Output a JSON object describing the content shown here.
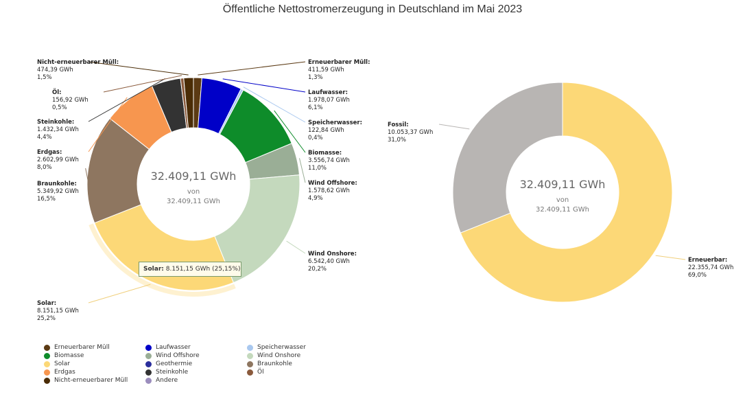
{
  "title": "Öffentliche Nettostromerzeugung in Deutschland im Mai 2023",
  "tooltip": {
    "name": "Solar:",
    "value": "8.151,15 GWh (25,15%)"
  },
  "legend": [
    {
      "label": "Erneuerbarer Müll",
      "color": "#5b3a14"
    },
    {
      "label": "Laufwasser",
      "color": "#0000c8"
    },
    {
      "label": "Speicherwasser",
      "color": "#a9c8ef"
    },
    {
      "label": "Biomasse",
      "color": "#0e8c2a"
    },
    {
      "label": "Wind Offshore",
      "color": "#9aae96"
    },
    {
      "label": "Wind Onshore",
      "color": "#c4d9bd"
    },
    {
      "label": "Solar",
      "color": "#fcd877"
    },
    {
      "label": "Geothermie",
      "color": "#2a2e9c"
    },
    {
      "label": "Braunkohle",
      "color": "#8e7660"
    },
    {
      "label": "Erdgas",
      "color": "#f7964f"
    },
    {
      "label": "Steinkohle",
      "color": "#333333"
    },
    {
      "label": "Öl",
      "color": "#8a5a3c"
    },
    {
      "label": "Nicht-erneuerbarer Müll",
      "color": "#4a2c06"
    },
    {
      "label": "Andere",
      "color": "#9b8dbd"
    }
  ],
  "chart_data": [
    {
      "type": "pie",
      "donut": true,
      "unit": "GWh",
      "center_total": "32.409,11 GWh",
      "center_of": "von",
      "center_sub": "32.409,11 GWh",
      "slices": [
        {
          "name": "Erneuerbarer Müll",
          "value": 411.59,
          "value_text": "411,59 GWh",
          "percent_text": "1,3%",
          "color": "#5b3a14"
        },
        {
          "name": "Laufwasser",
          "value": 1978.07,
          "value_text": "1.978,07 GWh",
          "percent_text": "6,1%",
          "color": "#0000c8"
        },
        {
          "name": "Speicherwasser",
          "value": 122.84,
          "value_text": "122,84 GWh",
          "percent_text": "0,4%",
          "color": "#a9c8ef"
        },
        {
          "name": "Biomasse",
          "value": 3556.74,
          "value_text": "3.556,74 GWh",
          "percent_text": "11,0%",
          "color": "#0e8c2a"
        },
        {
          "name": "Wind Offshore",
          "value": 1578.62,
          "value_text": "1.578,62 GWh",
          "percent_text": "4,9%",
          "color": "#9aae96"
        },
        {
          "name": "Wind Onshore",
          "value": 6542.4,
          "value_text": "6.542,40 GWh",
          "percent_text": "20,2%",
          "color": "#c4d9bd"
        },
        {
          "name": "Solar",
          "value": 8151.15,
          "value_text": "8.151,15 GWh",
          "percent_text": "25,2%",
          "color": "#fcd877",
          "highlighted": true
        },
        {
          "name": "Braunkohle",
          "value": 5349.92,
          "value_text": "5.349,92 GWh",
          "percent_text": "16,5%",
          "color": "#8e7660"
        },
        {
          "name": "Erdgas",
          "value": 2602.99,
          "value_text": "2.602,99 GWh",
          "percent_text": "8,0%",
          "color": "#f7964f"
        },
        {
          "name": "Steinkohle",
          "value": 1432.34,
          "value_text": "1.432,34 GWh",
          "percent_text": "4,4%",
          "color": "#333333"
        },
        {
          "name": "Öl",
          "value": 156.92,
          "value_text": "156,92 GWh",
          "percent_text": "0,5%",
          "color": "#8a5a3c"
        },
        {
          "name": "Nicht-erneuerbarer Müll",
          "value": 474.39,
          "value_text": "474,39 GWh",
          "percent_text": "1,5%",
          "color": "#4a2c06"
        }
      ]
    },
    {
      "type": "pie",
      "donut": true,
      "unit": "GWh",
      "center_total": "32.409,11 GWh",
      "center_of": "von",
      "center_sub": "32.409,11 GWh",
      "slices": [
        {
          "name": "Erneuerbar",
          "value": 22355.74,
          "value_text": "22.355,74 GWh",
          "percent_text": "69,0%",
          "color": "#fcd877"
        },
        {
          "name": "Fossil",
          "value": 10053.37,
          "value_text": "10.053,37 GWh",
          "percent_text": "31,0%",
          "color": "#b8b5b3"
        }
      ]
    }
  ]
}
